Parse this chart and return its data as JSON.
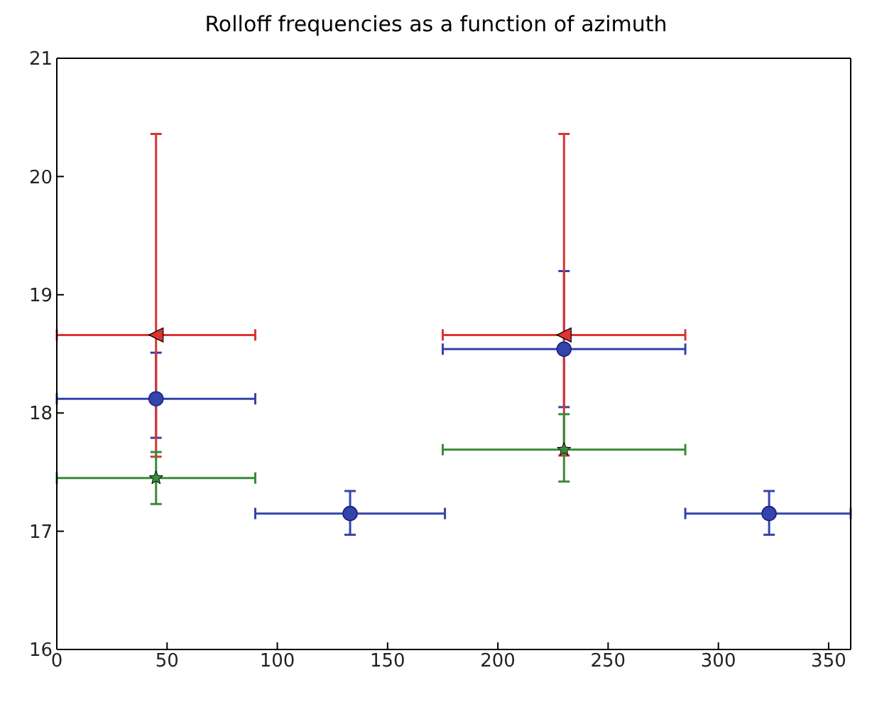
{
  "chart_data": {
    "type": "scatter",
    "title": "Rolloff frequencies as a function of azimuth",
    "xlim": [
      0,
      360
    ],
    "xticks": [
      0,
      50,
      100,
      150,
      200,
      250,
      300,
      350
    ],
    "ylim": [
      16,
      21
    ],
    "yticks": [
      16,
      17,
      18,
      19,
      20,
      21
    ],
    "legend": false,
    "series": [
      {
        "color": "#3344aa",
        "marker": "circle",
        "x": [
          45,
          133,
          230,
          323
        ],
        "values": [
          18.12,
          17.15,
          18.54,
          17.15
        ],
        "errors": [
          [
            17.79,
            18.51
          ],
          [
            16.97,
            17.34
          ],
          [
            18.05,
            19.2
          ],
          [
            16.97,
            17.34
          ]
        ],
        "xerrors": [
          [
            0,
            90
          ],
          [
            90,
            176
          ],
          [
            175,
            285
          ],
          [
            285,
            360
          ]
        ]
      },
      {
        "color": "#dd3333",
        "marker": "triangle",
        "x": [
          45,
          230
        ],
        "values": [
          18.66,
          18.66
        ],
        "errors": [
          [
            17.63,
            20.36
          ],
          [
            17.64,
            20.36
          ]
        ],
        "xerrors": [
          [
            0,
            90
          ],
          [
            175,
            285
          ]
        ]
      },
      {
        "color": "#3a8a3a",
        "marker": "star",
        "x": [
          45,
          230
        ],
        "values": [
          17.45,
          17.69
        ],
        "errors": [
          [
            17.23,
            17.67
          ],
          [
            17.42,
            17.99
          ]
        ],
        "xerrors": [
          [
            0,
            90
          ],
          [
            175,
            285
          ]
        ]
      }
    ]
  }
}
